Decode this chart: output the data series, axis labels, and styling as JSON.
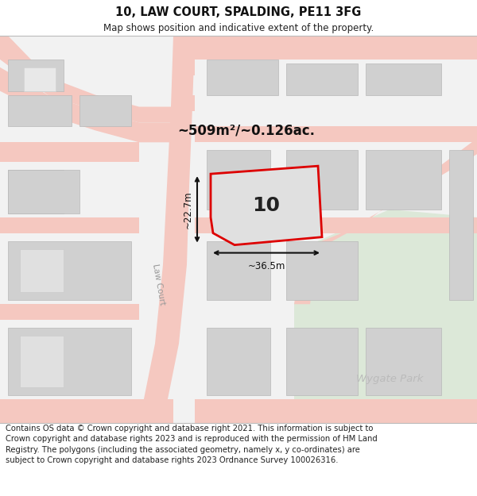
{
  "title_line1": "10, LAW COURT, SPALDING, PE11 3FG",
  "title_line2": "Map shows position and indicative extent of the property.",
  "footer_text": "Contains OS data © Crown copyright and database right 2021. This information is subject to Crown copyright and database rights 2023 and is reproduced with the permission of HM Land Registry. The polygons (including the associated geometry, namely x, y co-ordinates) are subject to Crown copyright and database rights 2023 Ordnance Survey 100026316.",
  "area_label": "~509m²/~0.126ac.",
  "width_label": "~36.5m",
  "height_label": "~22.7m",
  "plot_number": "10",
  "street_label": "Law Court",
  "locality_label": "Wygate Park",
  "map_bg": "#f0f0f0",
  "plot_fill": "#e0e0e0",
  "plot_edge_color": "#dd0000",
  "road_color": "#f5c8c0",
  "road_edge": "#e8a898",
  "building_color": "#d0d0d0",
  "building_edge": "#b8b8b8",
  "park_color": "#dce8d8",
  "dim_line_color": "#111111",
  "title_fontsize": 10.5,
  "subtitle_fontsize": 8.5,
  "footer_fontsize": 7.2,
  "label_color": "#999999"
}
